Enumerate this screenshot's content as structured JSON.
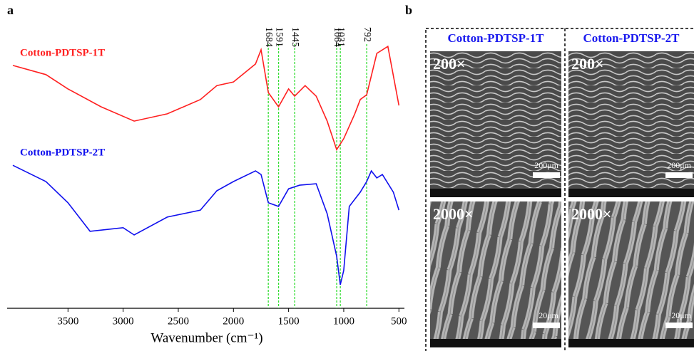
{
  "chart_data": {
    "type": "line",
    "xlabel": "Wavenumber (cm⁻¹)",
    "xlim": [
      4000,
      450
    ],
    "ylim": [
      0,
      100
    ],
    "xticks": [
      3500,
      3000,
      2500,
      2000,
      1500,
      1000,
      500
    ],
    "peak_lines": [
      1684,
      1591,
      1445,
      1064,
      1031,
      792
    ],
    "peak_color": "#33dd33",
    "series": [
      {
        "name": "Cotton-PDTSP-1T",
        "color": "#ff2020",
        "x": [
          4000,
          3700,
          3500,
          3200,
          2900,
          2600,
          2300,
          2150,
          2000,
          1800,
          1750,
          1684,
          1591,
          1500,
          1445,
          1350,
          1250,
          1150,
          1064,
          1000,
          900,
          850,
          792,
          700,
          600,
          500
        ],
        "values": [
          86.8,
          83.5,
          78.4,
          72.0,
          66.9,
          69.5,
          74.6,
          79.6,
          80.9,
          87.3,
          92.4,
          77.1,
          72.0,
          78.4,
          75.8,
          79.6,
          75.8,
          66.9,
          56.7,
          60.6,
          69.5,
          74.6,
          76.3,
          91.1,
          93.6,
          72.5
        ]
      },
      {
        "name": "Cotton-PDTSP-2T",
        "color": "#1010ee",
        "x": [
          4000,
          3700,
          3500,
          3300,
          3000,
          2900,
          2600,
          2300,
          2150,
          2000,
          1800,
          1750,
          1684,
          1591,
          1500,
          1400,
          1250,
          1150,
          1064,
          1031,
          1000,
          950,
          850,
          792,
          750,
          700,
          650,
          550,
          500
        ],
        "values": [
          51.1,
          45.3,
          37.7,
          27.5,
          28.8,
          26.2,
          32.6,
          35.1,
          42.0,
          45.3,
          49.1,
          47.8,
          37.7,
          36.4,
          42.7,
          44.0,
          44.5,
          33.8,
          18.6,
          8.4,
          13.5,
          36.4,
          41.5,
          45.3,
          49.1,
          46.6,
          47.8,
          41.5,
          35.1
        ]
      }
    ]
  },
  "panel_labels": [
    "a",
    "b"
  ],
  "sem_panel": {
    "columns": [
      "Cotton-PDTSP-1T",
      "Cotton-PDTSP-2T"
    ],
    "rows": [
      {
        "magnification": "200×",
        "scale_bar": "200μm"
      },
      {
        "magnification": "2000×",
        "scale_bar": "20μm"
      }
    ]
  }
}
